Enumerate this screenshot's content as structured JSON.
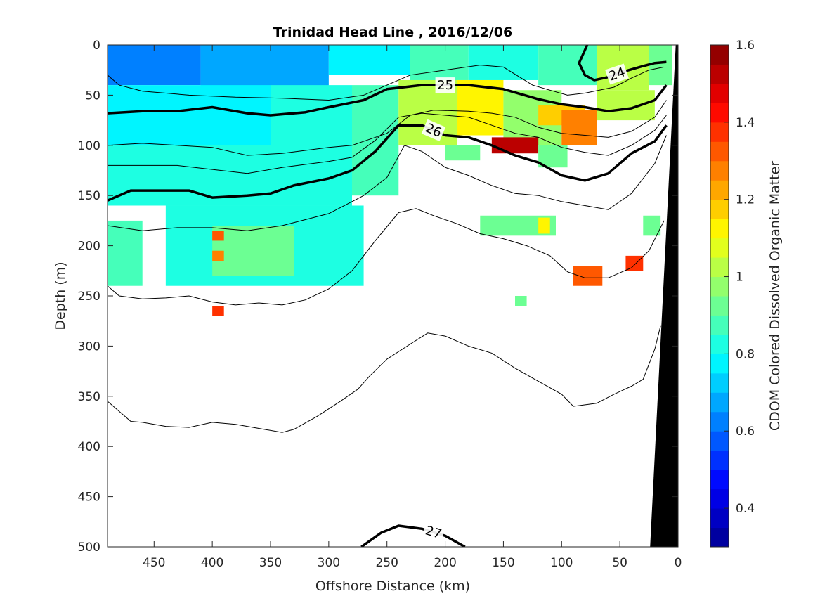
{
  "chart_data": {
    "type": "heatmap",
    "title": "Trinidad Head Line , 2016/12/06",
    "xlabel": "Offshore Distance (km)",
    "ylabel": "Depth (m)",
    "colorbar_label": "CDOM Colored Dissolved Organic Matter",
    "xlim": [
      490,
      0
    ],
    "ylim": [
      500,
      0
    ],
    "x_ticks": [
      450,
      400,
      350,
      300,
      250,
      200,
      150,
      100,
      50,
      0
    ],
    "y_ticks": [
      0,
      50,
      100,
      150,
      200,
      250,
      300,
      350,
      400,
      450,
      500
    ],
    "colorbar": {
      "range": [
        0.3,
        1.6
      ],
      "ticks": [
        0.4,
        0.6,
        0.8,
        1.0,
        1.2,
        1.4,
        1.6
      ],
      "tick_labels": [
        "0.4",
        "0.6",
        "0.8",
        "1",
        "1.2",
        "1.4",
        "1.6"
      ],
      "levels": 26,
      "colormap": "jet"
    },
    "density_contours": [
      {
        "level": 24,
        "label": "24",
        "points": [
          [
            78,
            0
          ],
          [
            85,
            18
          ],
          [
            80,
            30
          ],
          [
            72,
            35
          ],
          [
            60,
            32
          ],
          [
            45,
            26
          ],
          [
            30,
            21
          ],
          [
            20,
            18
          ],
          [
            10,
            17
          ]
        ]
      },
      {
        "level": 25,
        "label": "25",
        "points": [
          [
            490,
            68
          ],
          [
            460,
            66
          ],
          [
            430,
            66
          ],
          [
            400,
            62
          ],
          [
            370,
            68
          ],
          [
            350,
            70
          ],
          [
            320,
            67
          ],
          [
            300,
            62
          ],
          [
            270,
            55
          ],
          [
            250,
            44
          ],
          [
            220,
            40
          ],
          [
            180,
            40
          ],
          [
            150,
            44
          ],
          [
            120,
            54
          ],
          [
            100,
            59
          ],
          [
            80,
            62
          ],
          [
            60,
            66
          ],
          [
            40,
            63
          ],
          [
            20,
            55
          ],
          [
            10,
            40
          ]
        ]
      },
      {
        "level": 26,
        "label": "26",
        "points": [
          [
            490,
            155
          ],
          [
            470,
            145
          ],
          [
            445,
            145
          ],
          [
            420,
            145
          ],
          [
            400,
            152
          ],
          [
            370,
            150
          ],
          [
            350,
            148
          ],
          [
            330,
            140
          ],
          [
            300,
            133
          ],
          [
            280,
            125
          ],
          [
            260,
            106
          ],
          [
            240,
            80
          ],
          [
            220,
            80
          ],
          [
            200,
            90
          ],
          [
            180,
            92
          ],
          [
            160,
            100
          ],
          [
            140,
            110
          ],
          [
            120,
            117
          ],
          [
            100,
            130
          ],
          [
            80,
            135
          ],
          [
            60,
            128
          ],
          [
            40,
            108
          ],
          [
            20,
            96
          ],
          [
            10,
            80
          ]
        ]
      },
      {
        "level": 27,
        "label": "27",
        "points": [
          [
            272,
            500
          ],
          [
            255,
            486
          ],
          [
            240,
            479
          ],
          [
            220,
            482
          ],
          [
            200,
            489
          ],
          [
            183,
            500
          ]
        ]
      }
    ],
    "thin_contours": [
      [
        [
          490,
          30
        ],
        [
          480,
          40
        ],
        [
          460,
          46
        ],
        [
          440,
          48
        ],
        [
          420,
          50
        ],
        [
          380,
          52
        ],
        [
          340,
          53
        ],
        [
          300,
          55
        ],
        [
          270,
          50
        ],
        [
          250,
          40
        ],
        [
          230,
          30
        ],
        [
          200,
          25
        ],
        [
          170,
          20
        ],
        [
          150,
          22
        ],
        [
          125,
          40
        ],
        [
          110,
          45
        ],
        [
          95,
          50
        ],
        [
          80,
          48
        ],
        [
          55,
          42
        ],
        [
          40,
          33
        ],
        [
          25,
          25
        ],
        [
          12,
          22
        ]
      ],
      [
        [
          490,
          100
        ],
        [
          460,
          98
        ],
        [
          430,
          100
        ],
        [
          400,
          102
        ],
        [
          370,
          110
        ],
        [
          340,
          108
        ],
        [
          300,
          102
        ],
        [
          280,
          100
        ],
        [
          250,
          88
        ],
        [
          230,
          70
        ],
        [
          210,
          65
        ],
        [
          180,
          66
        ],
        [
          160,
          68
        ],
        [
          140,
          72
        ],
        [
          120,
          82
        ],
        [
          100,
          88
        ],
        [
          80,
          90
        ],
        [
          60,
          92
        ],
        [
          40,
          86
        ],
        [
          20,
          72
        ],
        [
          10,
          55
        ]
      ],
      [
        [
          490,
          120
        ],
        [
          460,
          120
        ],
        [
          430,
          120
        ],
        [
          400,
          124
        ],
        [
          370,
          128
        ],
        [
          340,
          122
        ],
        [
          300,
          116
        ],
        [
          280,
          112
        ],
        [
          260,
          95
        ],
        [
          240,
          72
        ],
        [
          220,
          68
        ],
        [
          200,
          70
        ],
        [
          180,
          72
        ],
        [
          160,
          80
        ],
        [
          140,
          88
        ],
        [
          120,
          92
        ],
        [
          100,
          102
        ],
        [
          80,
          107
        ],
        [
          60,
          110
        ],
        [
          40,
          100
        ],
        [
          20,
          85
        ],
        [
          10,
          70
        ]
      ],
      [
        [
          490,
          180
        ],
        [
          460,
          185
        ],
        [
          430,
          182
        ],
        [
          400,
          182
        ],
        [
          370,
          185
        ],
        [
          340,
          180
        ],
        [
          300,
          168
        ],
        [
          270,
          150
        ],
        [
          250,
          132
        ],
        [
          235,
          100
        ],
        [
          220,
          106
        ],
        [
          200,
          122
        ],
        [
          180,
          130
        ],
        [
          160,
          140
        ],
        [
          140,
          148
        ],
        [
          120,
          150
        ],
        [
          100,
          156
        ],
        [
          80,
          160
        ],
        [
          60,
          164
        ],
        [
          40,
          148
        ],
        [
          20,
          118
        ],
        [
          10,
          90
        ]
      ],
      [
        [
          490,
          240
        ],
        [
          480,
          250
        ],
        [
          460,
          253
        ],
        [
          440,
          252
        ],
        [
          420,
          250
        ],
        [
          400,
          256
        ],
        [
          380,
          259
        ],
        [
          360,
          257
        ],
        [
          340,
          259
        ],
        [
          320,
          254
        ],
        [
          300,
          243
        ],
        [
          280,
          225
        ],
        [
          260,
          195
        ],
        [
          240,
          167
        ],
        [
          225,
          163
        ],
        [
          210,
          170
        ],
        [
          190,
          178
        ],
        [
          170,
          188
        ],
        [
          150,
          193
        ],
        [
          130,
          200
        ],
        [
          110,
          210
        ],
        [
          95,
          226
        ],
        [
          80,
          232
        ],
        [
          60,
          232
        ],
        [
          40,
          222
        ],
        [
          25,
          205
        ],
        [
          12,
          175
        ]
      ],
      [
        [
          490,
          355
        ],
        [
          480,
          365
        ],
        [
          470,
          375
        ],
        [
          460,
          376
        ],
        [
          440,
          380
        ],
        [
          420,
          381
        ],
        [
          400,
          376
        ],
        [
          380,
          378
        ],
        [
          360,
          382
        ],
        [
          340,
          386
        ],
        [
          330,
          383
        ],
        [
          310,
          370
        ],
        [
          290,
          355
        ],
        [
          275,
          343
        ],
        [
          265,
          330
        ],
        [
          250,
          313
        ],
        [
          230,
          298
        ],
        [
          215,
          287
        ],
        [
          200,
          290
        ],
        [
          180,
          300
        ],
        [
          160,
          307
        ],
        [
          140,
          322
        ],
        [
          120,
          335
        ],
        [
          100,
          348
        ],
        [
          90,
          360
        ],
        [
          70,
          357
        ],
        [
          55,
          348
        ],
        [
          40,
          340
        ],
        [
          30,
          333
        ],
        [
          20,
          303
        ],
        [
          15,
          280
        ]
      ]
    ],
    "seafloor": [
      [
        24,
        500
      ],
      [
        0,
        500
      ],
      [
        0,
        0
      ],
      [
        2,
        0
      ]
    ],
    "cdom_field": [
      {
        "x": [
          490,
          410
        ],
        "y": [
          0,
          40
        ],
        "value": 0.62
      },
      {
        "x": [
          410,
          300
        ],
        "y": [
          0,
          45
        ],
        "value": 0.7
      },
      {
        "x": [
          300,
          230
        ],
        "y": [
          0,
          30
        ],
        "value": 0.78
      },
      {
        "x": [
          230,
          180
        ],
        "y": [
          0,
          35
        ],
        "value": 0.88
      },
      {
        "x": [
          180,
          120
        ],
        "y": [
          0,
          35
        ],
        "value": 0.82
      },
      {
        "x": [
          120,
          70
        ],
        "y": [
          0,
          40
        ],
        "value": 0.86
      },
      {
        "x": [
          70,
          25
        ],
        "y": [
          0,
          45
        ],
        "value": 1.05
      },
      {
        "x": [
          25,
          5
        ],
        "y": [
          0,
          40
        ],
        "value": 0.95
      },
      {
        "x": [
          490,
          350
        ],
        "y": [
          40,
          100
        ],
        "value": 0.78
      },
      {
        "x": [
          350,
          280
        ],
        "y": [
          40,
          100
        ],
        "value": 0.8
      },
      {
        "x": [
          280,
          240
        ],
        "y": [
          40,
          100
        ],
        "value": 0.88
      },
      {
        "x": [
          240,
          190
        ],
        "y": [
          35,
          100
        ],
        "value": 1.02
      },
      {
        "x": [
          190,
          150
        ],
        "y": [
          35,
          90
        ],
        "value": 1.1
      },
      {
        "x": [
          150,
          100
        ],
        "y": [
          45,
          100
        ],
        "value": 0.98
      },
      {
        "x": [
          120,
          80
        ],
        "y": [
          60,
          80
        ],
        "value": 1.2
      },
      {
        "x": [
          100,
          70
        ],
        "y": [
          65,
          100
        ],
        "value": 1.25
      },
      {
        "x": [
          70,
          20
        ],
        "y": [
          45,
          75
        ],
        "value": 1.05
      },
      {
        "x": [
          160,
          120
        ],
        "y": [
          92,
          108
        ],
        "value": 1.5
      },
      {
        "x": [
          490,
          280
        ],
        "y": [
          100,
          160
        ],
        "value": 0.8
      },
      {
        "x": [
          280,
          240
        ],
        "y": [
          100,
          150
        ],
        "value": 0.85
      },
      {
        "x": [
          200,
          170
        ],
        "y": [
          100,
          115
        ],
        "value": 0.9
      },
      {
        "x": [
          120,
          95
        ],
        "y": [
          100,
          122
        ],
        "value": 0.95
      },
      {
        "x": [
          440,
          270
        ],
        "y": [
          160,
          240
        ],
        "value": 0.82
      },
      {
        "x": [
          400,
          330
        ],
        "y": [
          180,
          230
        ],
        "value": 0.95
      },
      {
        "x": [
          490,
          460
        ],
        "y": [
          175,
          240
        ],
        "value": 0.85
      },
      {
        "x": [
          170,
          105
        ],
        "y": [
          170,
          190
        ],
        "value": 0.95
      },
      {
        "x": [
          120,
          110
        ],
        "y": [
          172,
          188
        ],
        "value": 1.1
      },
      {
        "x": [
          400,
          390
        ],
        "y": [
          185,
          195
        ],
        "value": 1.3
      },
      {
        "x": [
          400,
          390
        ],
        "y": [
          205,
          215
        ],
        "value": 1.25
      },
      {
        "x": [
          30,
          15
        ],
        "y": [
          170,
          190
        ],
        "value": 0.9
      },
      {
        "x": [
          90,
          65
        ],
        "y": [
          220,
          240
        ],
        "value": 1.3
      },
      {
        "x": [
          45,
          30
        ],
        "y": [
          210,
          225
        ],
        "value": 1.35
      },
      {
        "x": [
          140,
          130
        ],
        "y": [
          250,
          260
        ],
        "value": 0.92
      },
      {
        "x": [
          400,
          390
        ],
        "y": [
          260,
          270
        ],
        "value": 1.35
      }
    ]
  }
}
